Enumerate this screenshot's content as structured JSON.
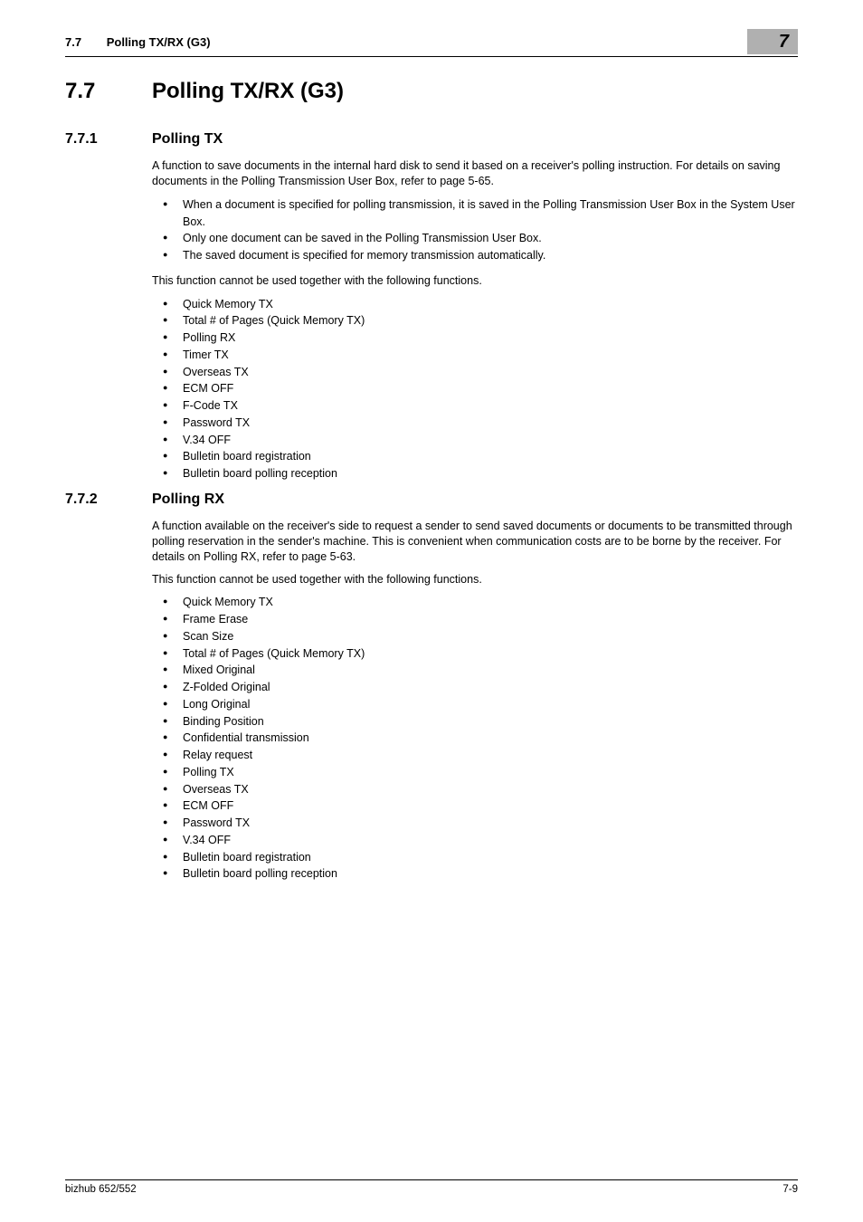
{
  "header": {
    "section_number": "7.7",
    "section_title": "Polling TX/RX (G3)",
    "chapter_badge": "7"
  },
  "h1": {
    "number": "7.7",
    "title": "Polling TX/RX (G3)"
  },
  "sub1": {
    "number": "7.7.1",
    "title": "Polling TX",
    "para1": "A function to save documents in the internal hard disk to send it based on a receiver's polling instruction. For details on saving documents in the Polling Transmission User Box, refer to page 5-65.",
    "list1": [
      "When a document is specified for polling transmission, it is saved in the Polling Transmission User Box in the System User Box.",
      "Only one document can be saved in the Polling Transmission User Box.",
      "The saved document is specified for memory transmission automatically."
    ],
    "para2": "This function cannot be used together with the following functions.",
    "list2": [
      "Quick Memory TX",
      "Total # of Pages (Quick Memory TX)",
      "Polling RX",
      "Timer TX",
      "Overseas TX",
      "ECM OFF",
      "F-Code TX",
      "Password TX",
      "V.34 OFF",
      "Bulletin board registration",
      "Bulletin board polling reception"
    ]
  },
  "sub2": {
    "number": "7.7.2",
    "title": "Polling RX",
    "para1": "A function available on the receiver's side to request a sender to send saved documents or documents to be transmitted through polling reservation in the sender's machine. This is convenient when communication costs are to be borne by the receiver. For details on Polling RX, refer to page 5-63.",
    "para2": "This function cannot be used together with the following functions.",
    "list1": [
      "Quick Memory TX",
      "Frame Erase",
      "Scan Size",
      "Total # of Pages (Quick Memory TX)",
      "Mixed Original",
      "Z-Folded Original",
      "Long Original",
      "Binding Position",
      "Confidential transmission",
      "Relay request",
      "Polling TX",
      "Overseas TX",
      "ECM OFF",
      "Password TX",
      "V.34 OFF",
      "Bulletin board registration",
      "Bulletin board polling reception"
    ]
  },
  "footer": {
    "left": "bizhub 652/552",
    "right": "7-9"
  }
}
